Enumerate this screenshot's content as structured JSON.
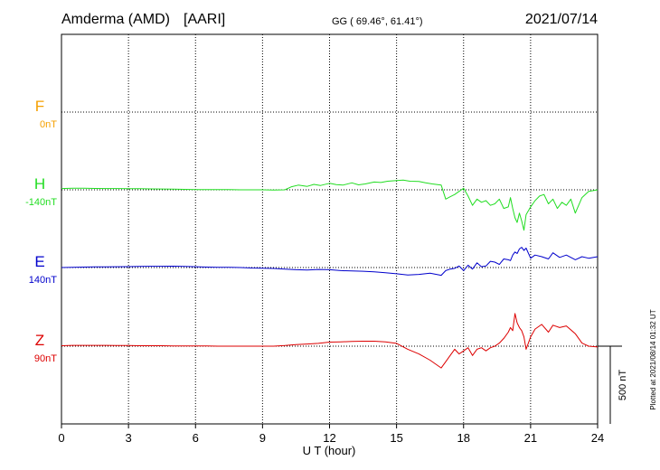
{
  "header": {
    "station": "Amderma (AMD)",
    "source": "[AARI]",
    "coords": "GG ( 69.46°,  61.41°)",
    "date": "2021/07/14"
  },
  "plotted_note": "Plotted at 2021/08/14 01:32 UT",
  "scale_label": "500 nT",
  "colors": {
    "F": "#f5a000",
    "H": "#22dd22",
    "E": "#0000cc",
    "Z": "#dd0000",
    "axis": "#000000"
  },
  "chart_data": {
    "type": "line",
    "xlabel": "U T (hour)",
    "xlim": [
      0,
      24
    ],
    "xticks": [
      "0",
      "3",
      "6",
      "9",
      "12",
      "15",
      "18",
      "21",
      "24"
    ],
    "y_scale_nT": 500,
    "grid": true,
    "series": [
      {
        "name": "F",
        "offset_label": "0nT",
        "values": []
      },
      {
        "name": "H",
        "offset_label": "-140nT",
        "x": [
          0,
          0.5,
          1,
          1.5,
          2,
          2.5,
          3,
          3.5,
          4,
          4.5,
          5,
          5.5,
          6,
          6.5,
          7,
          7.5,
          8,
          8.5,
          9,
          9.5,
          10,
          10.3,
          10.6,
          11,
          11.3,
          11.6,
          12,
          12.3,
          12.6,
          13,
          13.3,
          13.6,
          14,
          14.3,
          14.6,
          15,
          15.3,
          15.6,
          16,
          16.3,
          16.6,
          17,
          17.2,
          17.4,
          17.6,
          17.8,
          18,
          18.2,
          18.4,
          18.6,
          18.8,
          19,
          19.2,
          19.4,
          19.6,
          19.8,
          20,
          20.1,
          20.2,
          20.3,
          20.4,
          20.5,
          20.6,
          20.7,
          20.8,
          21,
          21.2,
          21.4,
          21.6,
          21.8,
          22,
          22.2,
          22.4,
          22.6,
          22.8,
          23,
          23.3,
          23.6,
          24
        ],
        "values": [
          8,
          10,
          10,
          9,
          8,
          8,
          7,
          7,
          6,
          5,
          4,
          3,
          2,
          1,
          1,
          1,
          0,
          0,
          0,
          -1,
          0,
          20,
          30,
          22,
          35,
          28,
          42,
          34,
          30,
          45,
          32,
          38,
          50,
          47,
          55,
          60,
          62,
          55,
          54,
          45,
          38,
          30,
          -60,
          -45,
          -30,
          -10,
          10,
          -40,
          -100,
          -60,
          -80,
          -70,
          -100,
          -90,
          -60,
          -120,
          -110,
          -50,
          -120,
          -180,
          -210,
          -150,
          -200,
          -260,
          -160,
          -110,
          -70,
          -40,
          -30,
          -90,
          -60,
          -120,
          -80,
          -100,
          -60,
          -150,
          -50,
          -10,
          0
        ]
      },
      {
        "name": "E",
        "offset_label": "140nT",
        "x": [
          0,
          0.5,
          1,
          1.5,
          2,
          2.5,
          3,
          3.5,
          4,
          4.5,
          5,
          5.5,
          6,
          6.5,
          7,
          7.5,
          8,
          8.5,
          9,
          9.5,
          10,
          10.5,
          11,
          11.5,
          12,
          12.5,
          13,
          13.5,
          14,
          14.5,
          15,
          15.5,
          16,
          16.5,
          17,
          17.2,
          17.4,
          17.6,
          17.8,
          18,
          18.2,
          18.4,
          18.6,
          18.8,
          19,
          19.2,
          19.4,
          19.6,
          19.8,
          20,
          20.1,
          20.2,
          20.3,
          20.4,
          20.5,
          20.6,
          20.7,
          20.8,
          21,
          21.2,
          21.5,
          21.8,
          22,
          22.3,
          22.6,
          23,
          23.3,
          23.6,
          24
        ],
        "values": [
          0,
          2,
          3,
          4,
          4,
          5,
          6,
          7,
          8,
          8,
          9,
          7,
          5,
          3,
          2,
          1,
          0,
          -3,
          -4,
          -6,
          -10,
          -14,
          -16,
          -12,
          -14,
          -20,
          -22,
          -24,
          -28,
          -34,
          -40,
          -48,
          -44,
          -36,
          -50,
          -20,
          -10,
          -5,
          10,
          -20,
          15,
          -10,
          30,
          5,
          10,
          40,
          35,
          20,
          55,
          50,
          45,
          80,
          100,
          90,
          120,
          130,
          110,
          125,
          60,
          80,
          70,
          55,
          95,
          65,
          80,
          50,
          70,
          60,
          70
        ]
      },
      {
        "name": "Z",
        "offset_label": "90nT",
        "x": [
          0,
          0.5,
          1,
          1.5,
          2,
          2.5,
          3,
          3.5,
          4,
          4.5,
          5,
          5.5,
          6,
          6.5,
          7,
          7.5,
          8,
          8.5,
          9,
          9.5,
          10,
          10.5,
          11,
          11.5,
          12,
          12.5,
          13,
          13.5,
          14,
          14.5,
          15,
          15.5,
          16,
          16.5,
          17,
          17.2,
          17.4,
          17.6,
          17.8,
          18,
          18.2,
          18.4,
          18.6,
          18.8,
          19,
          19.2,
          19.4,
          19.6,
          19.8,
          20,
          20.1,
          20.2,
          20.3,
          20.4,
          20.5,
          20.6,
          20.7,
          20.8,
          21,
          21.2,
          21.5,
          21.8,
          22,
          22.3,
          22.6,
          23,
          23.3,
          23.6,
          24
        ],
        "values": [
          3,
          5,
          5,
          5,
          5,
          4,
          4,
          3,
          3,
          3,
          2,
          1,
          1,
          1,
          0,
          0,
          0,
          0,
          0,
          0,
          4,
          10,
          14,
          18,
          26,
          28,
          30,
          32,
          32,
          28,
          18,
          -20,
          -50,
          -90,
          -140,
          -100,
          -60,
          -20,
          -50,
          -30,
          -10,
          -60,
          -20,
          -10,
          -30,
          -10,
          0,
          20,
          50,
          90,
          120,
          100,
          210,
          150,
          120,
          100,
          60,
          -20,
          60,
          110,
          140,
          90,
          135,
          120,
          130,
          80,
          20,
          0,
          -5
        ]
      }
    ]
  }
}
